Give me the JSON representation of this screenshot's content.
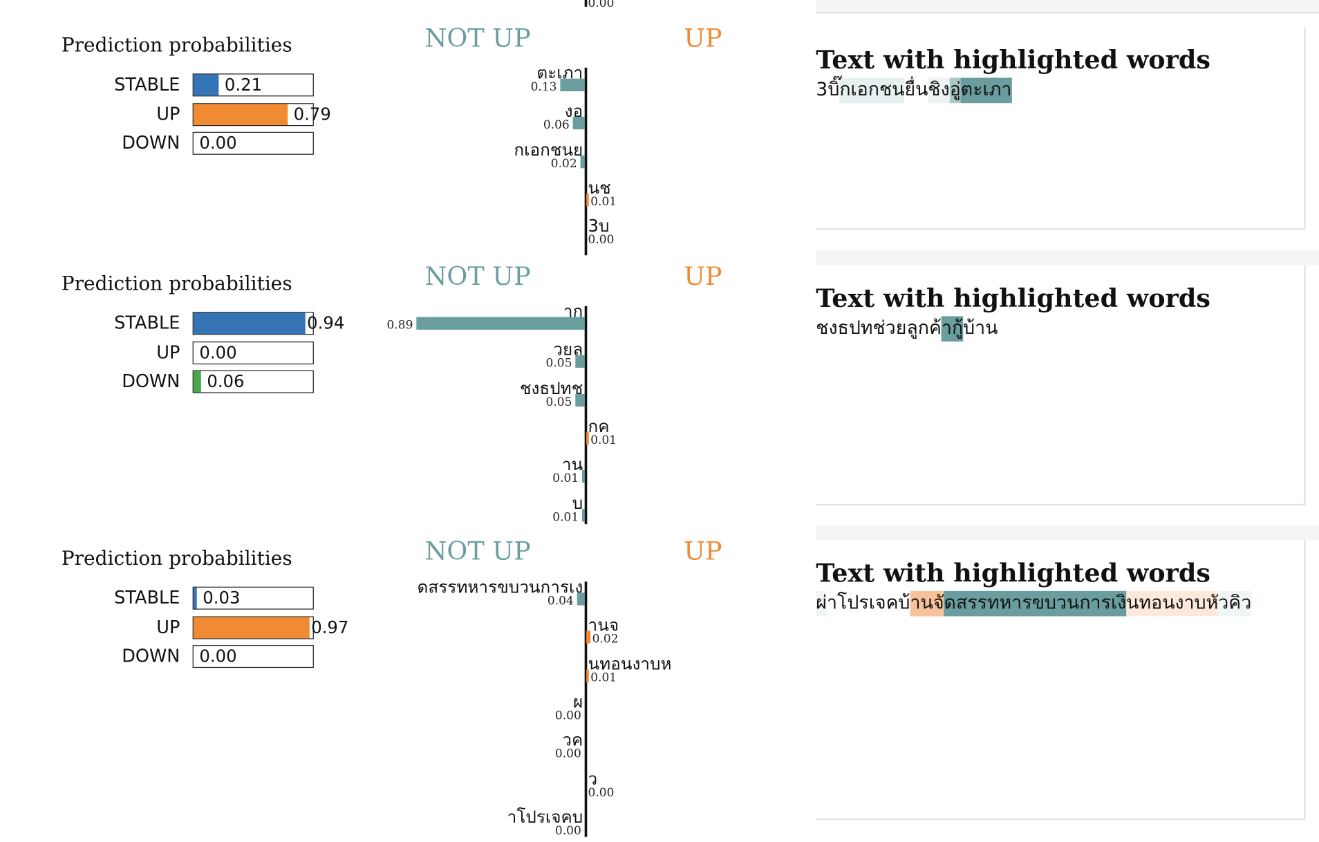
{
  "colors": {
    "stable": "#3474b4",
    "up": "#f08a33",
    "down": "#4aa84c",
    "not_up": "#6a9e9e",
    "up_header": "#f08a33"
  },
  "top_residual": {
    "value": "0.00"
  },
  "explanations": [
    {
      "pred_title": "Prediction probabilities",
      "probabilities": [
        {
          "label": "STABLE",
          "value": 0.21,
          "value_text": "0.21",
          "color": "stable"
        },
        {
          "label": "UP",
          "value": 0.79,
          "value_text": "0.79",
          "color": "up"
        },
        {
          "label": "DOWN",
          "value": 0.0,
          "value_text": "0.00",
          "color": "down"
        }
      ],
      "neg_label": "NOT UP",
      "pos_label": "UP",
      "features": [
        {
          "word": "ตะเภา",
          "weight": 0.13,
          "weight_text": "0.13",
          "side": "neg"
        },
        {
          "word": "งอ",
          "weight": 0.06,
          "weight_text": "0.06",
          "side": "neg"
        },
        {
          "word": "กเอกชนย",
          "weight": 0.02,
          "weight_text": "0.02",
          "side": "neg"
        },
        {
          "word": "นช",
          "weight": 0.01,
          "weight_text": "0.01",
          "side": "pos"
        },
        {
          "word": "3บ",
          "weight": 0.0,
          "weight_text": "0.00",
          "side": "pos"
        }
      ],
      "text_title": "Text with highlighted words",
      "text_segments": [
        {
          "t": "3บ",
          "hl": "none"
        },
        {
          "t": "ิ๊กเอกชน",
          "hl": "neg-light"
        },
        {
          "t": "ยื่น",
          "hl": "none"
        },
        {
          "t": "ชิง",
          "hl": "neg-light2"
        },
        {
          "t": "อู่",
          "hl": "neg-mid"
        },
        {
          "t": "ตะเภา",
          "hl": "neg-strong"
        }
      ]
    },
    {
      "pred_title": "Prediction probabilities",
      "probabilities": [
        {
          "label": "STABLE",
          "value": 0.94,
          "value_text": "0.94",
          "color": "stable"
        },
        {
          "label": "UP",
          "value": 0.0,
          "value_text": "0.00",
          "color": "up"
        },
        {
          "label": "DOWN",
          "value": 0.06,
          "value_text": "0.06",
          "color": "down"
        }
      ],
      "neg_label": "NOT UP",
      "pos_label": "UP",
      "features": [
        {
          "word": "าก",
          "weight": 0.89,
          "weight_text": "0.89",
          "side": "neg"
        },
        {
          "word": "วยล",
          "weight": 0.05,
          "weight_text": "0.05",
          "side": "neg"
        },
        {
          "word": "ชงธปทช",
          "weight": 0.05,
          "weight_text": "0.05",
          "side": "neg"
        },
        {
          "word": "กค",
          "weight": 0.01,
          "weight_text": "0.01",
          "side": "pos"
        },
        {
          "word": "าน",
          "weight": 0.01,
          "weight_text": "0.01",
          "side": "neg"
        },
        {
          "word": "บ",
          "weight": 0.01,
          "weight_text": "0.01",
          "side": "neg"
        }
      ],
      "text_title": "Text with highlighted words",
      "text_segments": [
        {
          "t": "ชงธปทช่วยลูกค้",
          "hl": "none"
        },
        {
          "t": "าก",
          "hl": "neg-strong"
        },
        {
          "t": "ู้บ้าน",
          "hl": "none"
        }
      ]
    },
    {
      "pred_title": "Prediction probabilities",
      "probabilities": [
        {
          "label": "STABLE",
          "value": 0.03,
          "value_text": "0.03",
          "color": "stable"
        },
        {
          "label": "UP",
          "value": 0.97,
          "value_text": "0.97",
          "color": "up"
        },
        {
          "label": "DOWN",
          "value": 0.0,
          "value_text": "0.00",
          "color": "down"
        }
      ],
      "neg_label": "NOT UP",
      "pos_label": "UP",
      "features": [
        {
          "word": "ดสรรทหารขบวนการเง",
          "weight": 0.04,
          "weight_text": "0.04",
          "side": "neg"
        },
        {
          "word": "านจ",
          "weight": 0.02,
          "weight_text": "0.02",
          "side": "pos"
        },
        {
          "word": "นทอนงาบห",
          "weight": 0.01,
          "weight_text": "0.01",
          "side": "pos"
        },
        {
          "word": "ผ",
          "weight": 0.0,
          "weight_text": "0.00",
          "side": "neg"
        },
        {
          "word": "วค",
          "weight": 0.0,
          "weight_text": "0.00",
          "side": "neg"
        },
        {
          "word": "ว",
          "weight": 0.0,
          "weight_text": "0.00",
          "side": "pos"
        },
        {
          "word": "าโปรเจคบ",
          "weight": 0.0,
          "weight_text": "0.00",
          "side": "neg"
        }
      ],
      "text_title": "Text with highlighted words",
      "text_segments": [
        {
          "t": "ผ่",
          "hl": "neg-faint"
        },
        {
          "t": "าโปรเจคบ้",
          "hl": "none"
        },
        {
          "t": "านจั",
          "hl": "pos-mid"
        },
        {
          "t": "ดสรรทหารขบวนการเงิ",
          "hl": "neg-strong"
        },
        {
          "t": "นทอนงาบห",
          "hl": "pos-light"
        },
        {
          "t": "ัวคิว",
          "hl": "neg-faint"
        }
      ]
    }
  ]
}
